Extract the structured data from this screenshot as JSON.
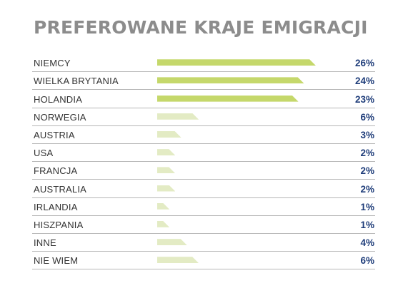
{
  "chart_data": {
    "type": "bar",
    "title": "PREFEROWANE KRAJE EMIGRACJI",
    "orientation": "horizontal",
    "unit": "%",
    "categories": [
      "NIEMCY",
      "WIELKA BRYTANIA",
      "HOLANDIA",
      "NORWEGIA",
      "AUSTRIA",
      "USA",
      "FRANCJA",
      "AUSTRALIA",
      "IRLANDIA",
      "HISZPANIA",
      "INNE",
      "NIE WIEM"
    ],
    "values": [
      26,
      24,
      23,
      6,
      3,
      2,
      2,
      2,
      1,
      1,
      4,
      6
    ],
    "value_labels": [
      "26%",
      "24%",
      "23%",
      "6%",
      "3%",
      "2%",
      "2%",
      "2%",
      "1%",
      "1%",
      "4%",
      "6%"
    ],
    "highlight_count": 3,
    "colors": {
      "highlight": "#c5d86b",
      "normal": "#e3ebc4",
      "value_text": "#1f3d7a",
      "title": "#8c8c8c"
    },
    "grid": false,
    "legend": "none"
  }
}
